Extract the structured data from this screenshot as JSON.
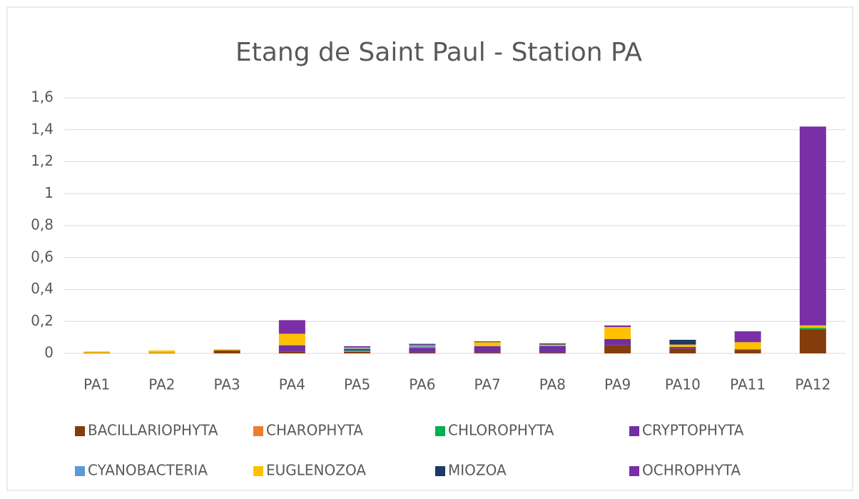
{
  "chart_data": {
    "type": "bar",
    "stacked": true,
    "title": "Etang de Saint Paul - Station PA",
    "categories": [
      "PA1",
      "PA2",
      "PA3",
      "PA4",
      "PA5",
      "PA6",
      "PA7",
      "PA8",
      "PA9",
      "PA10",
      "PA11",
      "PA12"
    ],
    "series": [
      {
        "name": "BACILLARIOPHYTA",
        "color": "#843c0c",
        "values": [
          0.002,
          0.003,
          0.018,
          0.01,
          0.01,
          0.005,
          0.005,
          0.005,
          0.05,
          0.03,
          0.022,
          0.15
        ]
      },
      {
        "name": "CHAROPHYTA",
        "color": "#ed7d31",
        "values": [
          0,
          0,
          0,
          0,
          0.003,
          0,
          0,
          0,
          0,
          0,
          0,
          0
        ]
      },
      {
        "name": "CHLOROPHYTA",
        "color": "#00b050",
        "values": [
          0,
          0,
          0,
          0,
          0.005,
          0,
          0,
          0,
          0,
          0,
          0,
          0.01
        ]
      },
      {
        "name": "CRYPTOPHYTA",
        "color": "#7030a0",
        "values": [
          0,
          0,
          0,
          0.04,
          0.01,
          0.03,
          0.04,
          0.04,
          0.04,
          0.01,
          0.003,
          0
        ]
      },
      {
        "name": "CYANOBACTERIA",
        "color": "#5b9bd5",
        "values": [
          0,
          0,
          0,
          0.003,
          0.005,
          0.01,
          0,
          0.005,
          0,
          0,
          0,
          0
        ]
      },
      {
        "name": "EUGLENOZOA",
        "color": "#ffc000",
        "values": [
          0.01,
          0.015,
          0.008,
          0.07,
          0.004,
          0.005,
          0.025,
          0.005,
          0.075,
          0.015,
          0.045,
          0.015
        ]
      },
      {
        "name": "MIOZOA",
        "color": "#203864",
        "values": [
          0,
          0,
          0,
          0,
          0.003,
          0.005,
          0.005,
          0.007,
          0,
          0.03,
          0,
          0
        ]
      },
      {
        "name": "OCHROPHYTA",
        "color": "#7a2fa6",
        "values": [
          0,
          0,
          0,
          0.085,
          0.005,
          0.005,
          0,
          0,
          0.01,
          0,
          0.068,
          1.245
        ]
      }
    ],
    "ylim": [
      0,
      1.6
    ],
    "yticks": [
      0,
      {
        "value": 0.2,
        "label": "0,2"
      },
      {
        "value": 0.4,
        "label": "0,4"
      },
      {
        "value": 0.6,
        "label": "0,6"
      },
      {
        "value": 0.8,
        "label": "0,8"
      },
      1,
      {
        "value": 1.2,
        "label": "1,2"
      },
      {
        "value": 1.4,
        "label": "1,4"
      },
      {
        "value": 1.6,
        "label": "1,6"
      }
    ],
    "grid": true,
    "legend": "bottom"
  }
}
